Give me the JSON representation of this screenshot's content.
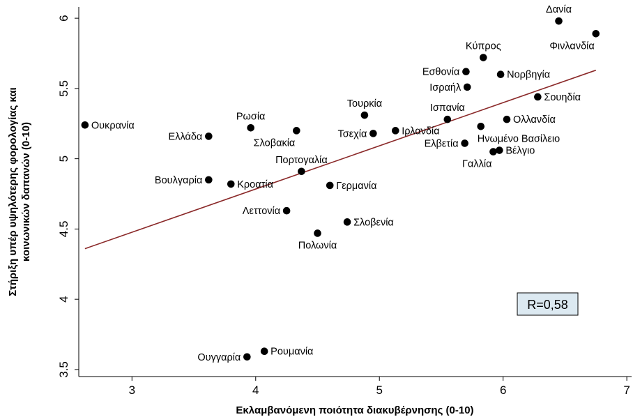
{
  "chart_data": {
    "type": "scatter",
    "title": "",
    "xlabel": "Εκλαμβανόμενη ποιότητα διακυβέρνησης (0-10)",
    "ylabel_lines": [
      "Στήριξη υπέρ υψηλότερης φορολογίας και",
      "κοινωνικών δαπανών (0-10)"
    ],
    "xlim": [
      2.57,
      7.05
    ],
    "ylim": [
      3.45,
      6.08
    ],
    "xticks": [
      "3",
      "4",
      "5",
      "6",
      "7"
    ],
    "yticks": [
      "3.5",
      "4",
      "4.5",
      "5",
      "5.5",
      "6"
    ],
    "grid": false,
    "annotation": "R=0,58",
    "trendline": {
      "x": [
        2.62,
        6.75
      ],
      "y": [
        4.36,
        5.63
      ],
      "color": "#8b2a2a"
    },
    "points": [
      {
        "label": "Δανία",
        "x": 6.45,
        "y": 5.98,
        "pos": "above"
      },
      {
        "label": "Φινλανδία",
        "x": 6.75,
        "y": 5.89,
        "pos": "below-left"
      },
      {
        "label": "Κύπρος",
        "x": 5.84,
        "y": 5.72,
        "pos": "above"
      },
      {
        "label": "Εσθονία",
        "x": 5.7,
        "y": 5.62,
        "pos": "left"
      },
      {
        "label": "Νορβηγία",
        "x": 5.98,
        "y": 5.6,
        "pos": "right"
      },
      {
        "label": "Ισραήλ",
        "x": 5.71,
        "y": 5.51,
        "pos": "left"
      },
      {
        "label": "Σουηδία",
        "x": 6.28,
        "y": 5.44,
        "pos": "right"
      },
      {
        "label": "Τουρκία",
        "x": 4.88,
        "y": 5.31,
        "pos": "above"
      },
      {
        "label": "Ισπανία",
        "x": 5.55,
        "y": 5.28,
        "pos": "above"
      },
      {
        "label": "Ολλανδία",
        "x": 6.03,
        "y": 5.28,
        "pos": "right"
      },
      {
        "label": "Ουκρανία",
        "x": 2.62,
        "y": 5.24,
        "pos": "right"
      },
      {
        "label": "Ηνωμένο Βασίλειο",
        "x": 5.82,
        "y": 5.23,
        "pos": "below-right"
      },
      {
        "label": "Ρωσία",
        "x": 3.96,
        "y": 5.22,
        "pos": "above"
      },
      {
        "label": "Σλοβακία",
        "x": 4.33,
        "y": 5.2,
        "pos": "below-left"
      },
      {
        "label": "Ιρλανδία",
        "x": 5.13,
        "y": 5.2,
        "pos": "right"
      },
      {
        "label": "Τσεχία",
        "x": 4.95,
        "y": 5.18,
        "pos": "left"
      },
      {
        "label": "Ελλάδα",
        "x": 3.62,
        "y": 5.16,
        "pos": "left"
      },
      {
        "label": "Ελβετία",
        "x": 5.69,
        "y": 5.11,
        "pos": "left"
      },
      {
        "label": "Βέλγιο",
        "x": 5.97,
        "y": 5.06,
        "pos": "right"
      },
      {
        "label": "Γαλλία",
        "x": 5.92,
        "y": 5.05,
        "pos": "below-left"
      },
      {
        "label": "Πορτογαλία",
        "x": 4.37,
        "y": 4.91,
        "pos": "above"
      },
      {
        "label": "Βουλγαρία",
        "x": 3.62,
        "y": 4.85,
        "pos": "left"
      },
      {
        "label": "Κροατία",
        "x": 3.8,
        "y": 4.82,
        "pos": "right"
      },
      {
        "label": "Γερμανία",
        "x": 4.6,
        "y": 4.81,
        "pos": "right"
      },
      {
        "label": "Λεττονία",
        "x": 4.25,
        "y": 4.63,
        "pos": "left"
      },
      {
        "label": "Σλοβενία",
        "x": 4.74,
        "y": 4.55,
        "pos": "right"
      },
      {
        "label": "Πολωνία",
        "x": 4.5,
        "y": 4.47,
        "pos": "below"
      },
      {
        "label": "Ρουμανία",
        "x": 4.07,
        "y": 3.63,
        "pos": "right"
      },
      {
        "label": "Ουγγαρία",
        "x": 3.93,
        "y": 3.59,
        "pos": "left"
      }
    ]
  }
}
